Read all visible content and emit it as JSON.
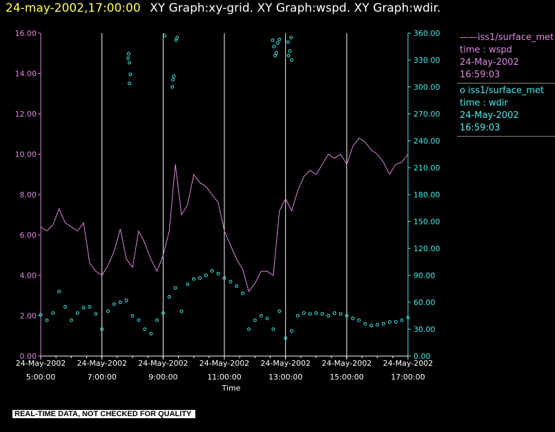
{
  "header": {
    "timestamp": "24-may-2002,17:00:00",
    "graphs": "XY Graph:xy-grid.  XY Graph:wspd.  XY Graph:wdir."
  },
  "legend": {
    "wspd": {
      "marker": "——",
      "source": "iss1/surface_met",
      "variable": "time : wspd",
      "date": "24-May-2002",
      "time": "16:59:03",
      "color": "#e088e0"
    },
    "wdir": {
      "marker": "o",
      "source": "iss1/surface_met",
      "variable": "time : wdir",
      "date": "24-May-2002",
      "time": "16:59:03",
      "color": "#44eeee"
    }
  },
  "footer": {
    "qc_note": "REAL-TIME DATA, NOT CHECKED FOR QUALITY"
  },
  "chart_data": {
    "type": "line",
    "xlabel": "Time",
    "x_ticks": [
      {
        "date": "24-May-2002",
        "time": "5:00:00",
        "hour": 5
      },
      {
        "date": "24-May-2002",
        "time": "7:00:00",
        "hour": 7
      },
      {
        "date": "24-May-2002",
        "time": "9:00:00",
        "hour": 9
      },
      {
        "date": "24-May-2002",
        "time": "11:00:00",
        "hour": 11
      },
      {
        "date": "24-May-2002",
        "time": "13:00:00",
        "hour": 13
      },
      {
        "date": "24-May-2002",
        "time": "15:00:00",
        "hour": 15
      },
      {
        "date": "24-May-2002",
        "time": "17:00:00",
        "hour": 17
      }
    ],
    "xlim_hours": [
      5,
      17
    ],
    "left_axis": {
      "ylim": [
        0,
        16
      ],
      "ticks": [
        "0.00",
        "2.00",
        "4.00",
        "6.00",
        "8.00",
        "10.00",
        "12.00",
        "14.00",
        "16.00"
      ],
      "color": "#e088e0"
    },
    "right_axis": {
      "ylim": [
        0,
        360
      ],
      "ticks": [
        "0.00",
        "30.00",
        "60.00",
        "90.00",
        "120.00",
        "150.00",
        "180.00",
        "210.00",
        "240.00",
        "270.00",
        "300.00",
        "330.00",
        "360.00"
      ],
      "color": "#44eeee"
    },
    "vertical_grid": true,
    "series": [
      {
        "name": "iss1/surface_met time : wspd",
        "axis": "left",
        "style": "line",
        "x": [
          5.0,
          5.2,
          5.4,
          5.6,
          5.8,
          6.0,
          6.2,
          6.4,
          6.6,
          6.8,
          7.0,
          7.2,
          7.4,
          7.6,
          7.8,
          8.0,
          8.2,
          8.4,
          8.6,
          8.8,
          9.0,
          9.2,
          9.4,
          9.6,
          9.8,
          10.0,
          10.2,
          10.4,
          10.6,
          10.8,
          11.0,
          11.2,
          11.4,
          11.6,
          11.8,
          12.0,
          12.2,
          12.4,
          12.6,
          12.8,
          13.0,
          13.2,
          13.4,
          13.6,
          13.8,
          14.0,
          14.2,
          14.4,
          14.6,
          14.8,
          15.0,
          15.2,
          15.4,
          15.6,
          15.8,
          16.0,
          16.2,
          16.4,
          16.6,
          16.8,
          17.0
        ],
        "values": [
          6.4,
          6.2,
          6.5,
          7.3,
          6.6,
          6.4,
          6.2,
          6.6,
          4.6,
          4.2,
          4.0,
          4.5,
          5.2,
          6.3,
          4.8,
          4.4,
          6.2,
          5.6,
          4.8,
          4.2,
          5.0,
          6.2,
          9.5,
          7.0,
          7.5,
          9.0,
          8.6,
          8.4,
          8.0,
          7.6,
          6.2,
          5.5,
          4.8,
          4.3,
          3.2,
          3.6,
          4.2,
          4.2,
          4.0,
          7.2,
          7.8,
          7.2,
          8.2,
          8.9,
          9.2,
          9.0,
          9.5,
          10.0,
          9.8,
          10.0,
          9.5,
          10.4,
          10.8,
          10.6,
          10.2,
          10.0,
          9.6,
          9.0,
          9.5,
          9.6,
          10.0
        ]
      },
      {
        "name": "iss1/surface_met time : wdir",
        "axis": "right",
        "style": "markers",
        "x": [
          5.0,
          5.2,
          5.4,
          5.6,
          5.8,
          6.0,
          6.2,
          6.4,
          6.6,
          6.8,
          7.0,
          7.2,
          7.4,
          7.6,
          7.8,
          8.0,
          8.2,
          8.4,
          8.6,
          8.8,
          9.0,
          9.2,
          9.4,
          9.6,
          9.8,
          10.0,
          10.2,
          10.4,
          10.6,
          10.8,
          11.0,
          11.2,
          11.4,
          11.6,
          11.8,
          12.0,
          12.2,
          12.4,
          12.6,
          12.8,
          13.0,
          13.2,
          13.4,
          13.6,
          13.8,
          14.0,
          14.2,
          14.4,
          14.6,
          14.8,
          15.0,
          15.2,
          15.4,
          15.6,
          15.8,
          16.0,
          16.2,
          16.4,
          16.6,
          16.8,
          17.0
        ],
        "values": [
          46,
          40,
          48,
          72,
          55,
          40,
          48,
          54,
          55,
          47,
          30,
          50,
          58,
          60,
          62,
          45,
          40,
          30,
          25,
          40,
          48,
          66,
          76,
          50,
          80,
          86,
          87,
          90,
          95,
          92,
          87,
          83,
          78,
          70,
          30,
          40,
          45,
          42,
          30,
          50,
          20,
          28,
          45,
          48,
          47,
          48,
          47,
          45,
          48,
          47,
          45,
          42,
          40,
          36,
          34,
          35,
          36,
          38,
          38,
          40,
          43
        ]
      }
    ],
    "outlier_points_wdir": [
      {
        "x": 7.85,
        "y": 332
      },
      {
        "x": 7.87,
        "y": 337
      },
      {
        "x": 7.9,
        "y": 327
      },
      {
        "x": 7.93,
        "y": 314
      },
      {
        "x": 7.9,
        "y": 304
      },
      {
        "x": 9.05,
        "y": 357
      },
      {
        "x": 9.3,
        "y": 300
      },
      {
        "x": 9.32,
        "y": 308
      },
      {
        "x": 9.35,
        "y": 312
      },
      {
        "x": 9.42,
        "y": 352
      },
      {
        "x": 9.46,
        "y": 355
      },
      {
        "x": 12.58,
        "y": 352
      },
      {
        "x": 12.62,
        "y": 345
      },
      {
        "x": 12.66,
        "y": 335
      },
      {
        "x": 12.7,
        "y": 338
      },
      {
        "x": 12.74,
        "y": 349
      },
      {
        "x": 12.8,
        "y": 353
      },
      {
        "x": 13.08,
        "y": 350
      },
      {
        "x": 13.1,
        "y": 335
      },
      {
        "x": 13.14,
        "y": 340
      },
      {
        "x": 13.18,
        "y": 355
      },
      {
        "x": 13.2,
        "y": 330
      }
    ]
  },
  "colors": {
    "background": "#000000",
    "axes": "#ffffff",
    "grid": "#ffffff",
    "wspd": "#e088e0",
    "wdir": "#44eeee",
    "title_stamp": "#ffff55"
  }
}
